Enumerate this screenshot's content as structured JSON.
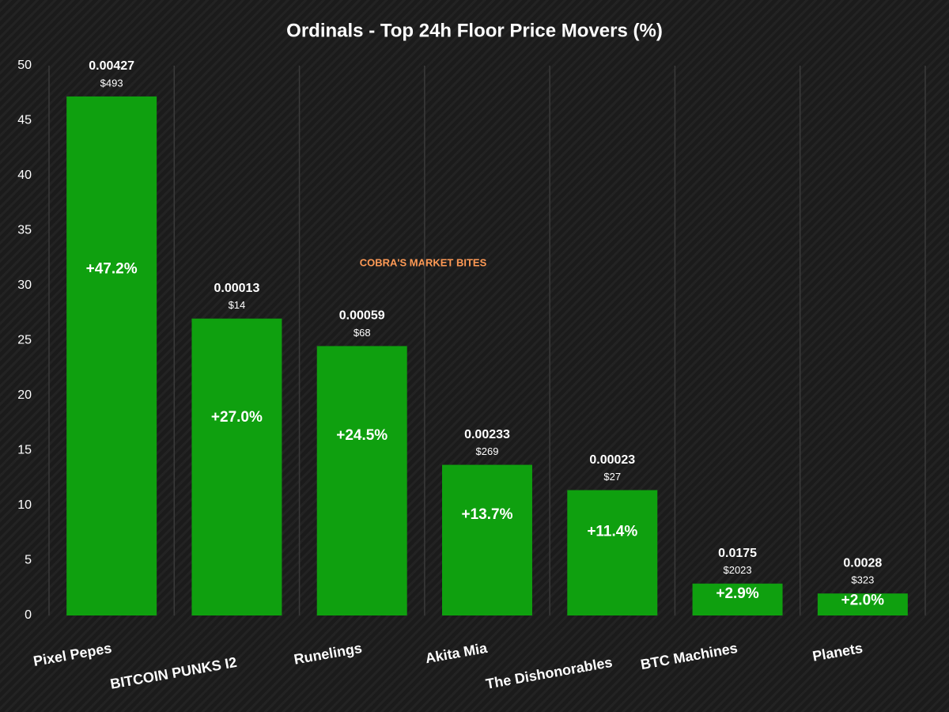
{
  "chart_data": {
    "type": "bar",
    "title": "Ordinals - Top 24h Floor Price Movers (%)",
    "categories": [
      "Pixel Pepes",
      "BITCOIN PUNKS I2",
      "Runelings",
      "Akita Mia",
      "The Dishonorables",
      "BTC Machines",
      "Planets"
    ],
    "values": [
      47.2,
      27.0,
      24.5,
      13.7,
      11.4,
      2.9,
      2.0
    ],
    "value_labels": [
      "+47.2%",
      "+27.0%",
      "+24.5%",
      "+13.7%",
      "+11.4%",
      "+2.9%",
      "+2.0%"
    ],
    "btc_floor_labels": [
      "0.00427",
      "0.00013",
      "0.00059",
      "0.00233",
      "0.00023",
      "0.0175",
      "0.0028"
    ],
    "usd_floor_labels": [
      "$493",
      "$14",
      "$68",
      "$269",
      "$27",
      "$2023",
      "$323"
    ],
    "color": "#0fa00f",
    "ylim": [
      0,
      50
    ],
    "yticks": [
      0,
      5,
      10,
      15,
      20,
      25,
      30,
      35,
      40,
      45,
      50
    ],
    "grid": true,
    "watermark": "COBRA'S MARKET BITES"
  }
}
